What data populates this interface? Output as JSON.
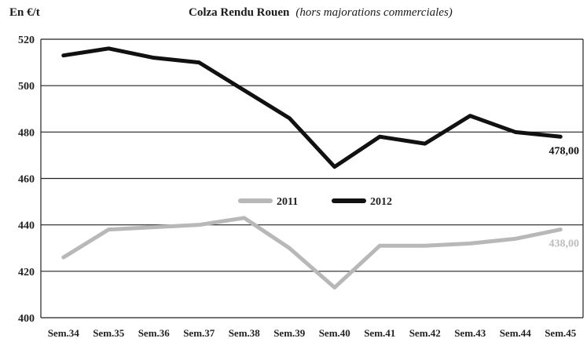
{
  "chart_data": {
    "type": "line",
    "title": "Colza Rendu Rouen",
    "subtitle": "(hors majorations commerciales)",
    "ylabel": "En €/t",
    "xlabel": "",
    "categories": [
      "Sem.34",
      "Sem.35",
      "Sem.36",
      "Sem.37",
      "Sem.38",
      "Sem.39",
      "Sem.40",
      "Sem.41",
      "Sem.42",
      "Sem.43",
      "Sem.44",
      "Sem.45"
    ],
    "ylim": [
      400,
      520
    ],
    "yticks": [
      400,
      420,
      440,
      460,
      480,
      500,
      520
    ],
    "grid": true,
    "legend_position": "center",
    "series": [
      {
        "name": "2011",
        "color": "#b8b8b8",
        "values": [
          426,
          438,
          439,
          440,
          443,
          430,
          413,
          431,
          431,
          432,
          434,
          438
        ],
        "end_label": "438,00"
      },
      {
        "name": "2012",
        "color": "#111111",
        "values": [
          513,
          516,
          512,
          510,
          498,
          486,
          465,
          478,
          475,
          487,
          480,
          478
        ],
        "end_label": "478,00"
      }
    ]
  }
}
